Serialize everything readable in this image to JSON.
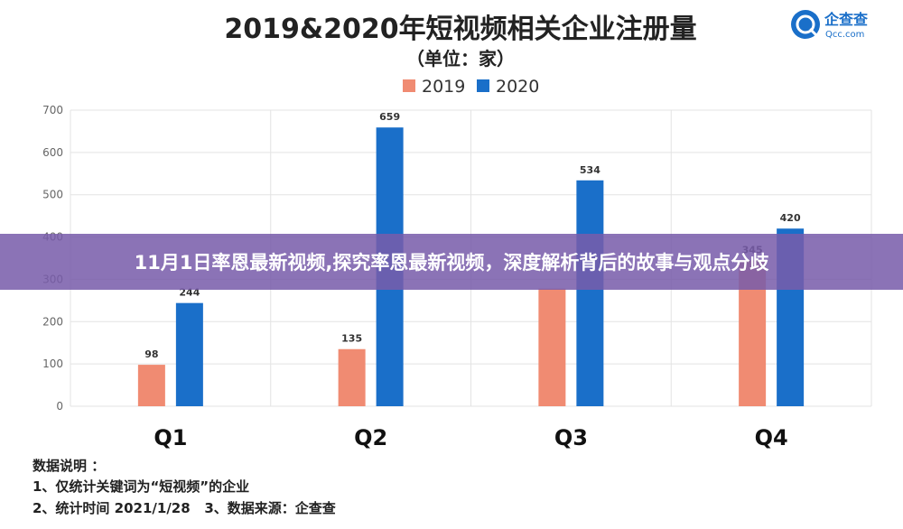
{
  "chart_data": {
    "type": "bar",
    "title": "2019&2020年短视频相关企业注册量",
    "subtitle": "（单位：家）",
    "categories": [
      "Q1",
      "Q2",
      "Q3",
      "Q4"
    ],
    "series": [
      {
        "name": "2019",
        "values": [
          98,
          135,
          278,
          345
        ],
        "color": "#f08b72"
      },
      {
        "name": "2020",
        "values": [
          244,
          659,
          534,
          420
        ],
        "color": "#1a6fc9"
      }
    ],
    "data_labels": {
      "2019": [
        "98",
        "135",
        "",
        "345"
      ],
      "2020": [
        "244",
        "659",
        "534",
        "420"
      ]
    },
    "ylim": [
      0,
      700
    ],
    "yticks": [
      0,
      100,
      200,
      300,
      400,
      500,
      600,
      700
    ],
    "grid": true,
    "legend_position": "top-center"
  },
  "logo": {
    "name": "企查查",
    "sub": "Qcc.com",
    "icon": "qichacha-logo-icon"
  },
  "notes": {
    "heading": "数据说明 ：",
    "line1": "1、仅统计关键词为“短视频”的企业",
    "line2": "2、统计时间 2021/1/28   3、数据来源：企查查"
  },
  "banner": {
    "text": "11月1日率恩最新视频,探究率恩最新视频，深度解析背后的故事与观点分歧"
  }
}
